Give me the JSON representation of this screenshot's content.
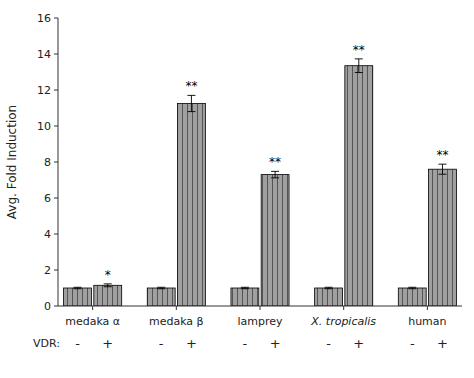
{
  "chart_data": {
    "type": "bar",
    "categories": [
      "medaka α",
      "medaka β",
      "lamprey",
      "X. tropicalis",
      "human"
    ],
    "series": [
      {
        "name": "-",
        "color": "#a0a0a0",
        "values": [
          1.0,
          1.0,
          1.0,
          1.0,
          1.0
        ],
        "errors": [
          0.04,
          0.04,
          0.04,
          0.04,
          0.04
        ]
      },
      {
        "name": "+",
        "color": "#a0a0a0",
        "values": [
          1.15,
          11.25,
          7.3,
          13.35,
          7.6
        ],
        "errors": [
          0.08,
          0.45,
          0.18,
          0.38,
          0.28
        ],
        "significance": [
          "*",
          "**",
          "**",
          "**",
          "**"
        ]
      }
    ],
    "ylabel": "Avg. Fold Induction",
    "annotations": [
      {
        "text": "VDR:"
      }
    ],
    "ylim": [
      0,
      16
    ],
    "yticks": [
      0,
      2,
      4,
      6,
      8,
      10,
      12,
      14,
      16
    ],
    "grid": false
  }
}
